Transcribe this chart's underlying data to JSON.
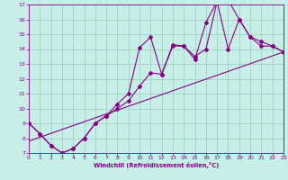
{
  "xlabel": "Windchill (Refroidissement éolien,°C)",
  "bg_color": "#c8eee8",
  "line_color": "#880088",
  "grid_color": "#99ccbb",
  "xlim": [
    0,
    23
  ],
  "ylim": [
    7,
    17
  ],
  "xticks": [
    0,
    1,
    2,
    3,
    4,
    5,
    6,
    7,
    8,
    9,
    10,
    11,
    12,
    13,
    14,
    15,
    16,
    17,
    18,
    19,
    20,
    21,
    22,
    23
  ],
  "yticks": [
    7,
    8,
    9,
    10,
    11,
    12,
    13,
    14,
    15,
    16,
    17
  ],
  "series1_x": [
    0,
    1,
    2,
    3,
    4,
    5,
    6,
    7,
    8,
    9,
    10,
    11,
    12,
    13,
    14,
    15,
    16,
    17,
    18,
    19,
    20,
    21,
    22,
    23
  ],
  "series1_y": [
    9.0,
    8.3,
    7.5,
    7.0,
    7.3,
    8.0,
    9.0,
    9.5,
    10.3,
    11.0,
    14.1,
    14.8,
    12.3,
    14.2,
    14.2,
    13.3,
    15.8,
    17.2,
    17.3,
    16.0,
    14.8,
    14.5,
    14.2,
    13.8
  ],
  "series2_x": [
    0,
    1,
    2,
    3,
    4,
    5,
    6,
    7,
    8,
    9,
    10,
    11,
    12,
    13,
    14,
    15,
    16,
    17,
    18,
    19,
    20,
    21,
    22,
    23
  ],
  "series2_y": [
    9.0,
    8.3,
    7.5,
    7.0,
    7.3,
    8.0,
    9.0,
    9.5,
    10.0,
    10.5,
    11.5,
    12.4,
    12.3,
    14.3,
    14.2,
    13.5,
    14.0,
    17.2,
    14.0,
    16.0,
    14.8,
    14.2,
    14.2,
    13.8
  ],
  "series3_x": [
    0,
    23
  ],
  "series3_y": [
    7.8,
    13.8
  ]
}
